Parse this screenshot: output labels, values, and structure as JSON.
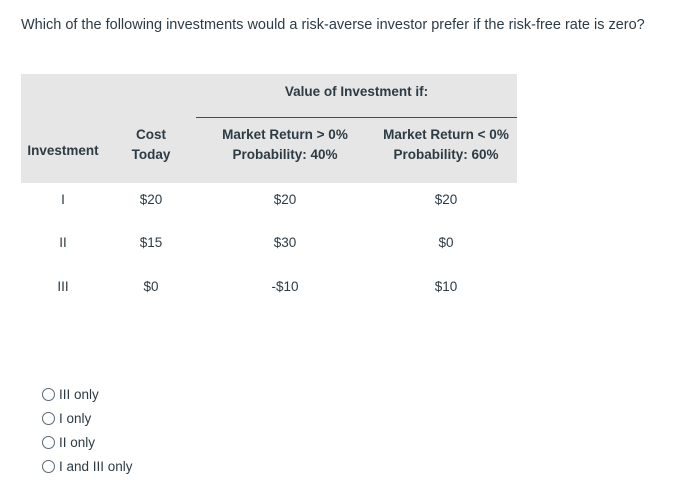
{
  "question": "Which of the following investments would a risk-averse investor prefer if the risk-free rate is zero?",
  "table": {
    "group_title": "Value of Investment if:",
    "headers": {
      "investment": "Investment",
      "cost_line1": "Cost",
      "cost_line2": "Today",
      "up_line1": "Market Return > 0%",
      "up_line2": "Probability: 40%",
      "down_line1": "Market Return < 0%",
      "down_line2": "Probability: 60%"
    },
    "rows": [
      {
        "investment": "I",
        "cost": "$20",
        "up": "$20",
        "down": "$20"
      },
      {
        "investment": "II",
        "cost": "$15",
        "up": "$30",
        "down": "$0"
      },
      {
        "investment": "III",
        "cost": "$0",
        "up": "-$10",
        "down": "$10"
      }
    ]
  },
  "options": [
    {
      "label": "III only",
      "icon": "radio-button-unchecked-icon"
    },
    {
      "label": "I only",
      "icon": "radio-button-unchecked-icon"
    },
    {
      "label": "II only",
      "icon": "radio-button-unchecked-icon"
    },
    {
      "label": "I and III only",
      "icon": "radio-button-unchecked-icon"
    }
  ]
}
